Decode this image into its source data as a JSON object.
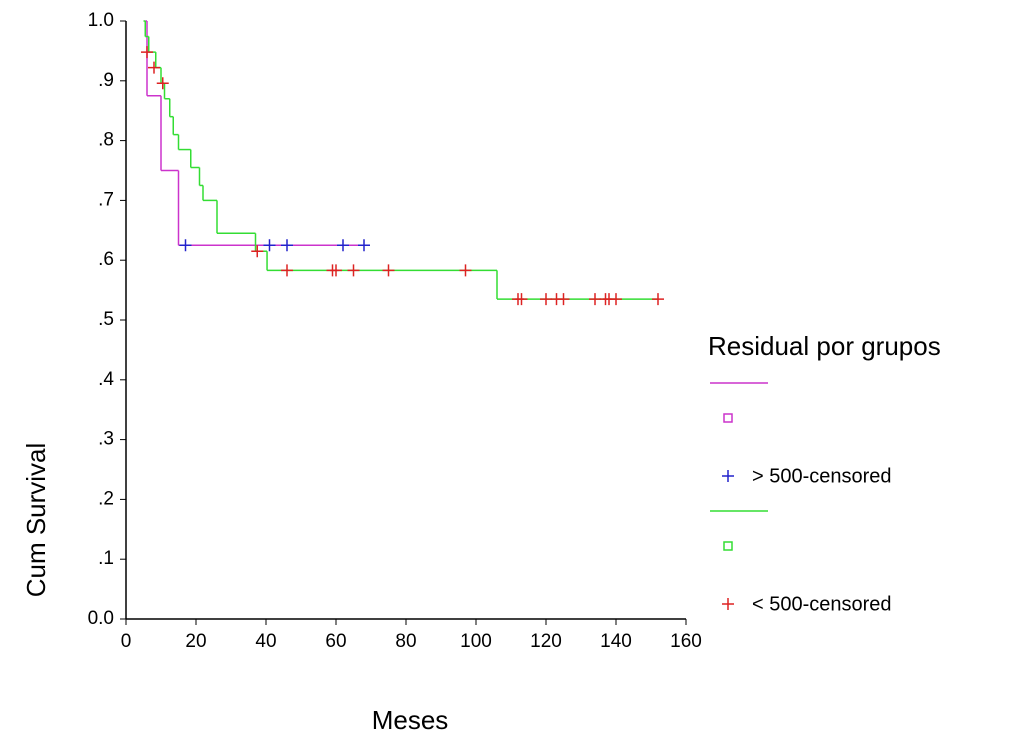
{
  "chart_data": {
    "type": "survival",
    "xlabel": "Meses",
    "ylabel": "Cum Survival",
    "legend_title": "Residual por grupos",
    "xlim": [
      0,
      160
    ],
    "xticks": [
      0,
      20,
      40,
      60,
      80,
      100,
      120,
      140,
      160
    ],
    "ylim": [
      0,
      1
    ],
    "yticks": [
      {
        "value": 0,
        "label": "0.0"
      },
      {
        "value": 0.1,
        "label": ".1"
      },
      {
        "value": 0.2,
        "label": ".2"
      },
      {
        "value": 0.3,
        "label": ".3"
      },
      {
        "value": 0.4,
        "label": ".4"
      },
      {
        "value": 0.5,
        "label": ".5"
      },
      {
        "value": 0.6,
        "label": ".6"
      },
      {
        "value": 0.7,
        "label": ".7"
      },
      {
        "value": 0.8,
        "label": ".8"
      },
      {
        "value": 0.9,
        "label": ".9"
      },
      {
        "value": 1,
        "label": "1.0"
      }
    ],
    "series": [
      {
        "color": "#cc33cc",
        "style": "step",
        "x": [
          5.5,
          6,
          10,
          15,
          68
        ],
        "values": [
          1.0,
          0.875,
          0.75,
          0.625,
          0.625
        ]
      },
      {
        "name": "> 500-censored",
        "color": "#2222cc",
        "style": "censor",
        "x": [
          17,
          41,
          46,
          62,
          68
        ],
        "values": [
          0.625,
          0.625,
          0.625,
          0.625,
          0.625
        ]
      },
      {
        "color": "#33dd33",
        "style": "step",
        "x": [
          5,
          5.5,
          6.5,
          8.5,
          10,
          11,
          12.5,
          13.5,
          15,
          18.5,
          21,
          22,
          26,
          37,
          40.3,
          106,
          152
        ],
        "values": [
          1.0,
          0.974,
          0.948,
          0.922,
          0.896,
          0.87,
          0.84,
          0.81,
          0.785,
          0.755,
          0.725,
          0.7,
          0.645,
          0.615,
          0.583,
          0.535,
          0.535
        ]
      },
      {
        "name": "< 500-censored",
        "color": "#dd2222",
        "style": "censor",
        "x": [
          6,
          8,
          10.5,
          37.5,
          46,
          59,
          60,
          65,
          75,
          97,
          112,
          113,
          120,
          123,
          125,
          134,
          137,
          138,
          140,
          152
        ],
        "values": [
          0.948,
          0.922,
          0.896,
          0.615,
          0.583,
          0.583,
          0.583,
          0.583,
          0.583,
          0.583,
          0.535,
          0.535,
          0.535,
          0.535,
          0.535,
          0.535,
          0.535,
          0.535,
          0.535,
          0.535
        ]
      }
    ]
  }
}
